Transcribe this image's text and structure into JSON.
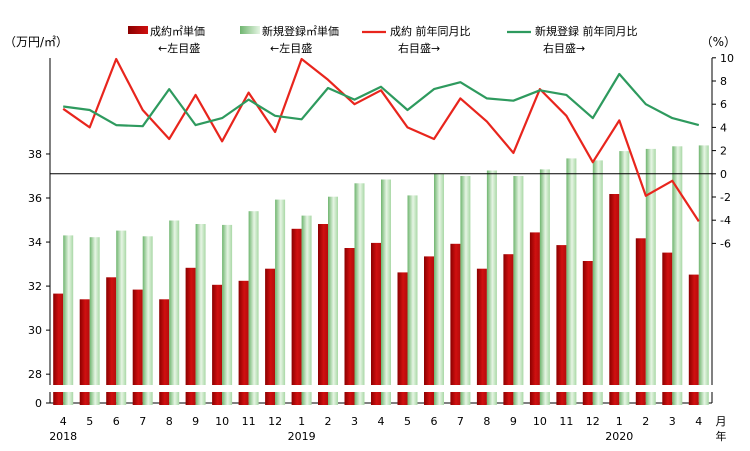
{
  "chart_data": {
    "type": "bar",
    "left_axis_unit": "（万円/㎡）",
    "right_axis_unit": "（%）",
    "month_unit": "月",
    "year_unit": "年",
    "categories": [
      "4",
      "5",
      "6",
      "7",
      "8",
      "9",
      "10",
      "11",
      "12",
      "1",
      "2",
      "3",
      "4",
      "5",
      "6",
      "7",
      "8",
      "9",
      "10",
      "11",
      "12",
      "1",
      "2",
      "3",
      "4"
    ],
    "years": [
      {
        "label": "2018",
        "at": 0
      },
      {
        "label": "2019",
        "at": 9
      },
      {
        "label": "2020",
        "at": 21
      }
    ],
    "yleft": {
      "ticks": [
        28,
        30,
        32,
        34,
        36,
        38
      ],
      "axis_break": true
    },
    "yright": {
      "ticks": [
        -6,
        -4,
        -2,
        0,
        2,
        4,
        6,
        8,
        10
      ],
      "range": [
        -10,
        10
      ]
    },
    "legend": [
      {
        "label": "成約㎡単価",
        "sub": "←左目盛",
        "kind": "bar",
        "color": "#d01010"
      },
      {
        "label": "新規登録㎡単価",
        "sub": "←左目盛",
        "kind": "bar",
        "color": "#9ed39e"
      },
      {
        "label": "成約 前年同月比",
        "sub": "右目盛→",
        "kind": "line",
        "color": "#e8251d"
      },
      {
        "label": "新規登録 前年同月比",
        "sub": "右目盛→",
        "kind": "line",
        "color": "#2e9a5e"
      }
    ],
    "series": [
      {
        "name": "成約㎡単価",
        "type": "bar",
        "axis": "left",
        "color": "#d01010",
        "values": [
          31.66,
          31.4,
          32.4,
          31.84,
          31.4,
          32.83,
          32.06,
          32.24,
          32.79,
          34.6,
          34.82,
          33.73,
          33.96,
          32.62,
          33.35,
          33.92,
          32.79,
          33.45,
          34.44,
          33.86,
          33.14,
          36.18,
          34.17,
          33.52,
          32.52
        ]
      },
      {
        "name": "新規登録㎡単価",
        "type": "bar",
        "axis": "left",
        "color": "#9ed39e",
        "values": [
          34.3,
          34.22,
          34.52,
          34.26,
          34.98,
          34.82,
          34.78,
          35.4,
          35.93,
          35.2,
          36.06,
          36.67,
          36.84,
          36.12,
          37.09,
          37.0,
          37.25,
          37.0,
          37.3,
          37.8,
          37.71,
          38.13,
          38.23,
          38.35,
          38.39
        ]
      },
      {
        "name": "成約 前年同月比",
        "type": "line",
        "axis": "right",
        "color": "#e8251d",
        "values": [
          5.6,
          4.0,
          9.9,
          5.5,
          3.0,
          6.8,
          2.8,
          7.0,
          3.6,
          9.9,
          8.1,
          6.0,
          7.2,
          4.0,
          3.0,
          6.5,
          4.5,
          1.8,
          7.3,
          5.0,
          1.0,
          4.6,
          -1.9,
          -0.6,
          -4.1
        ]
      },
      {
        "name": "新規登録 前年同月比",
        "type": "line",
        "axis": "right",
        "color": "#2e9a5e",
        "values": [
          5.8,
          5.5,
          4.2,
          4.1,
          7.3,
          4.2,
          4.8,
          6.4,
          5.0,
          4.7,
          7.4,
          6.4,
          7.5,
          5.5,
          7.3,
          7.9,
          6.5,
          6.3,
          7.2,
          6.8,
          4.8,
          8.6,
          6.0,
          4.8,
          4.2
        ]
      }
    ]
  }
}
